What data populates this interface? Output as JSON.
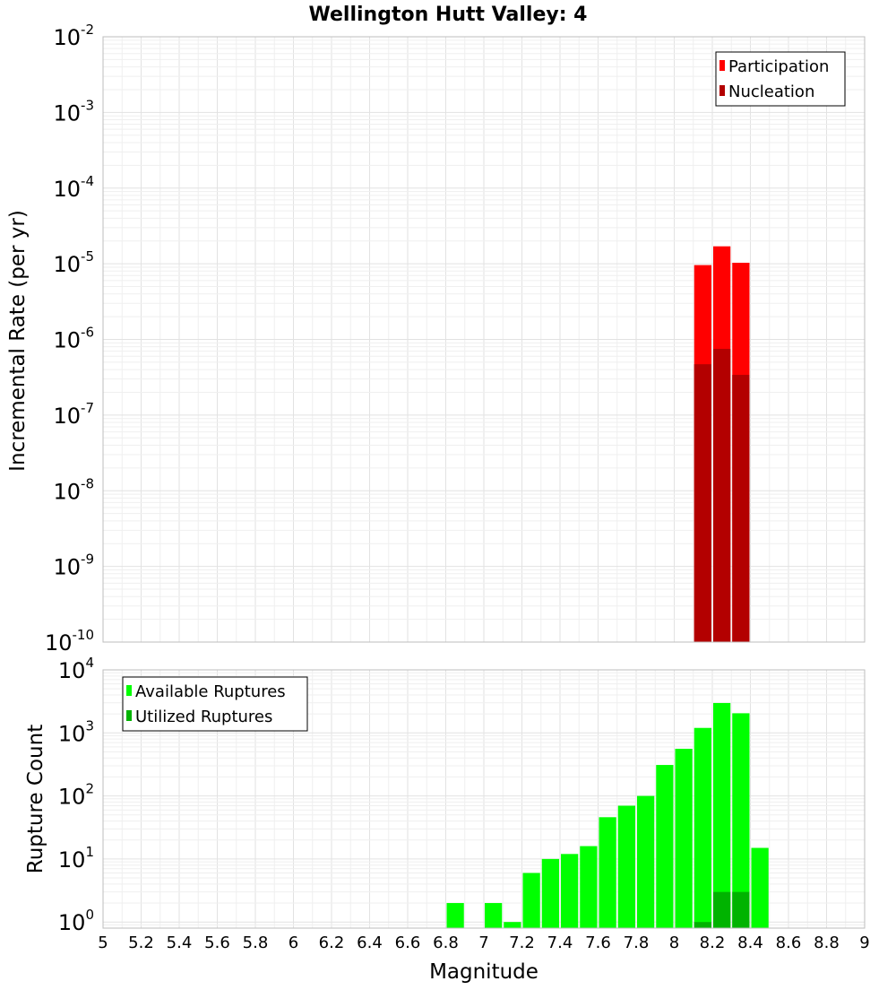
{
  "chart_data": [
    {
      "type": "bar",
      "title": "Wellington Hutt Valley: 4",
      "xlabel": "",
      "ylabel": "Incremental Rate (per yr)",
      "yscale": "log",
      "ylim": [
        1e-10,
        0.01
      ],
      "xlim": [
        5,
        9
      ],
      "bin_width": 0.1,
      "grid": true,
      "legend_position": "top-right",
      "y_ticks": [
        {
          "base": "10",
          "exp": "-2",
          "value": 0.01
        },
        {
          "base": "10",
          "exp": "-3",
          "value": 0.001
        },
        {
          "base": "10",
          "exp": "-4",
          "value": 0.0001
        },
        {
          "base": "10",
          "exp": "-5",
          "value": 1e-05
        },
        {
          "base": "10",
          "exp": "-6",
          "value": 1e-06
        },
        {
          "base": "10",
          "exp": "-7",
          "value": 1e-07
        },
        {
          "base": "10",
          "exp": "-8",
          "value": 1e-08
        },
        {
          "base": "10",
          "exp": "-9",
          "value": 1e-09
        },
        {
          "base": "10",
          "exp": "-10",
          "value": 1e-10
        }
      ],
      "series": [
        {
          "name": "Participation",
          "color": "#ff0000",
          "x": [
            8.15,
            8.25,
            8.35
          ],
          "values": [
            9.6e-06,
            1.7e-05,
            1.03e-05
          ]
        },
        {
          "name": "Nucleation",
          "color": "#b30000",
          "x": [
            8.15,
            8.25,
            8.35
          ],
          "values": [
            4.7e-07,
            7.5e-07,
            3.4e-07
          ]
        }
      ]
    },
    {
      "type": "bar",
      "title": "",
      "xlabel": "Magnitude",
      "ylabel": "Rupture Count",
      "yscale": "log",
      "ylim": [
        0.8,
        10000
      ],
      "xlim": [
        5,
        9
      ],
      "bin_width": 0.1,
      "grid": true,
      "legend_position": "top-left",
      "x_ticks": [
        "5",
        "5.2",
        "5.4",
        "5.6",
        "5.8",
        "6",
        "6.2",
        "6.4",
        "6.6",
        "6.8",
        "7",
        "7.2",
        "7.4",
        "7.6",
        "7.8",
        "8",
        "8.2",
        "8.4",
        "8.6",
        "8.8",
        "9"
      ],
      "y_ticks": [
        {
          "base": "10",
          "exp": "4",
          "value": 10000
        },
        {
          "base": "10",
          "exp": "3",
          "value": 1000
        },
        {
          "base": "10",
          "exp": "2",
          "value": 100
        },
        {
          "base": "10",
          "exp": "1",
          "value": 10
        },
        {
          "base": "10",
          "exp": "0",
          "value": 1
        }
      ],
      "series": [
        {
          "name": "Available Ruptures",
          "color": "#00ff00",
          "x": [
            6.85,
            7.05,
            7.15,
            7.25,
            7.35,
            7.45,
            7.55,
            7.65,
            7.75,
            7.85,
            7.95,
            8.05,
            8.15,
            8.25,
            8.35,
            8.45
          ],
          "values": [
            2,
            2,
            1,
            6,
            10,
            12,
            16,
            46,
            70,
            100,
            310,
            560,
            1200,
            2980,
            2050,
            15
          ]
        },
        {
          "name": "Utilized Ruptures",
          "color": "#00b300",
          "x": [
            8.15,
            8.25,
            8.35
          ],
          "values": [
            1,
            3,
            3
          ]
        }
      ]
    }
  ]
}
